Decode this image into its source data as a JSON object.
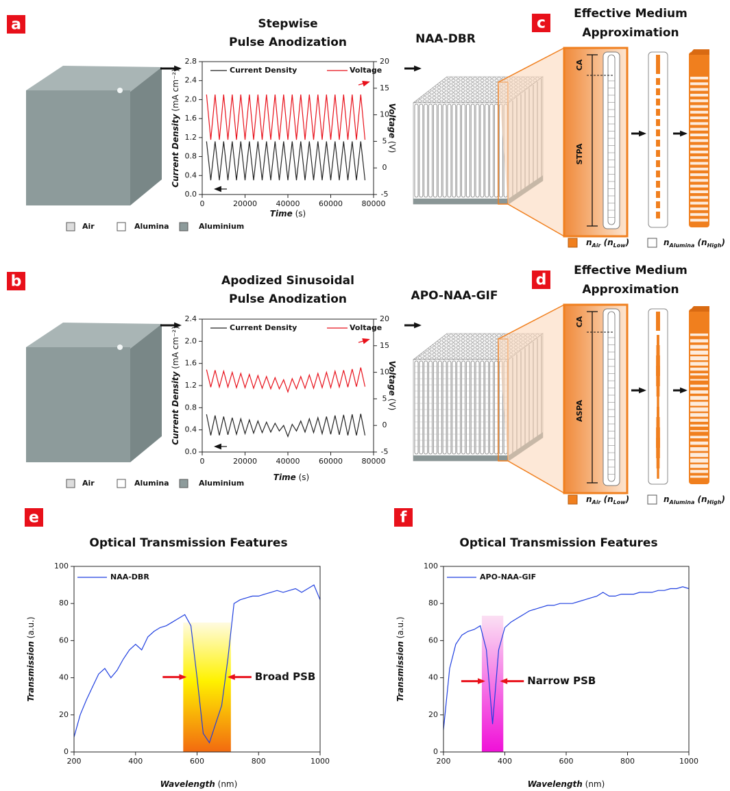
{
  "diagrams": [
    {
      "panel": "a",
      "product": "NAA-DBR",
      "ema_panel": "c",
      "ema_title": [
        "Effective Medium",
        "Approximation"
      ],
      "layers": [
        "CA",
        "STPA"
      ],
      "materials": [
        "Air",
        "Alumina",
        "Aluminium"
      ],
      "index_legend": [
        [
          "n",
          "Air",
          " (",
          "n",
          "Low",
          ")"
        ],
        [
          "n",
          "Alumina",
          " (",
          "n",
          "High",
          ")"
        ]
      ]
    },
    {
      "panel": "b",
      "product": "APO-NAA-GIF",
      "ema_panel": "d",
      "ema_title": [
        "Effective Medium",
        "Approximation"
      ],
      "layers": [
        "CA",
        "ASPA"
      ],
      "materials": [
        "Air",
        "Alumina",
        "Aluminium"
      ],
      "index_legend": [
        [
          "n",
          "Air",
          " (",
          "n",
          "Low",
          ")"
        ],
        [
          "n",
          "Alumina",
          " (",
          "n",
          "High",
          ")"
        ]
      ]
    }
  ],
  "chart_data": [
    {
      "type": "line",
      "title": [
        "Stepwise",
        "Pulse Anodization"
      ],
      "x_label": [
        "Time",
        " (s)"
      ],
      "y_label": [
        "Current Density",
        " (mA cm⁻²)"
      ],
      "y2_label": [
        "Voltage",
        " (V)"
      ],
      "x": [
        2000,
        4000,
        6000,
        8000,
        10000,
        12000,
        14000,
        16000,
        18000,
        20000,
        22000,
        24000,
        26000,
        28000,
        30000,
        32000,
        34000,
        36000,
        38000,
        40000,
        42000,
        44000,
        46000,
        48000,
        50000,
        52000,
        54000,
        56000,
        58000,
        60000,
        62000,
        64000,
        66000,
        68000,
        70000,
        72000,
        74000,
        76000
      ],
      "series": [
        {
          "name": "Current Density",
          "color": "#222222",
          "values": [
            1.12,
            0.3,
            1.12,
            0.3,
            1.12,
            0.3,
            1.12,
            0.3,
            1.12,
            0.3,
            1.12,
            0.3,
            1.12,
            0.3,
            1.12,
            0.3,
            1.12,
            0.3,
            1.12,
            0.3,
            1.12,
            0.3,
            1.12,
            0.3,
            1.12,
            0.3,
            1.12,
            0.3,
            1.12,
            0.3,
            1.12,
            0.3,
            1.12,
            0.3,
            1.12,
            0.3,
            1.12,
            0.3
          ]
        },
        {
          "name": "Voltage",
          "color": "#e8101a",
          "axis": "y2",
          "values": [
            13.8,
            5.3,
            13.8,
            5.3,
            13.8,
            5.3,
            13.8,
            5.3,
            13.8,
            5.3,
            13.8,
            5.3,
            13.8,
            5.3,
            13.8,
            5.3,
            13.8,
            5.3,
            13.8,
            5.3,
            13.8,
            5.3,
            13.8,
            5.3,
            13.8,
            5.3,
            13.8,
            5.3,
            13.8,
            5.3,
            13.8,
            5.3,
            13.8,
            5.3,
            13.8,
            5.3,
            13.8,
            5.3
          ]
        }
      ],
      "xlim": [
        0,
        80000
      ],
      "xticks": [
        0,
        20000,
        40000,
        60000,
        80000
      ],
      "ylim": [
        0,
        2.8
      ],
      "yticks": [
        {
          "value": 0,
          "label": "0.0"
        },
        0.4,
        0.8,
        1.2,
        1.6,
        {
          "value": 2,
          "label": "2.0"
        },
        2.4,
        2.8
      ],
      "y2lim": [
        -5,
        20
      ],
      "y2ticks": [
        -5,
        0,
        5,
        10,
        15,
        20
      ]
    },
    {
      "type": "line",
      "title": [
        "Apodized Sinusoidal",
        "Pulse Anodization"
      ],
      "x_label": [
        "Time",
        " (s)"
      ],
      "y_label": [
        "Current Density",
        " (mA cm⁻²)"
      ],
      "y2_label": [
        "Voltage",
        " (V)"
      ],
      "x": [
        2000,
        4000,
        6000,
        8000,
        10000,
        12000,
        14000,
        16000,
        18000,
        20000,
        22000,
        24000,
        26000,
        28000,
        30000,
        32000,
        34000,
        36000,
        38000,
        40000,
        42000,
        44000,
        46000,
        48000,
        50000,
        52000,
        54000,
        56000,
        58000,
        60000,
        62000,
        64000,
        66000,
        68000,
        70000,
        72000,
        74000,
        76000
      ],
      "series": [
        {
          "name": "Current Density",
          "color": "#222222",
          "values": [
            0.68,
            0.3,
            0.66,
            0.3,
            0.64,
            0.31,
            0.62,
            0.32,
            0.6,
            0.33,
            0.58,
            0.34,
            0.56,
            0.35,
            0.54,
            0.36,
            0.52,
            0.38,
            0.48,
            0.28,
            0.5,
            0.38,
            0.56,
            0.36,
            0.6,
            0.35,
            0.62,
            0.33,
            0.64,
            0.32,
            0.66,
            0.31,
            0.67,
            0.3,
            0.68,
            0.3,
            0.69,
            0.3
          ]
        },
        {
          "name": "Voltage",
          "color": "#e8101a",
          "axis": "y2",
          "values": [
            10.5,
            7.2,
            10.4,
            7.2,
            10.2,
            7.2,
            10.0,
            7.1,
            9.8,
            7.1,
            9.6,
            7.0,
            9.4,
            7.0,
            9.2,
            6.9,
            9.0,
            6.9,
            8.6,
            6.3,
            8.8,
            6.9,
            9.2,
            7.0,
            9.5,
            7.0,
            9.8,
            7.1,
            10.0,
            7.1,
            10.2,
            7.2,
            10.4,
            7.2,
            10.6,
            7.3,
            10.9,
            7.3
          ]
        }
      ],
      "xlim": [
        0,
        80000
      ],
      "xticks": [
        0,
        20000,
        40000,
        60000,
        80000
      ],
      "ylim": [
        0,
        2.4
      ],
      "yticks": [
        {
          "value": 0,
          "label": "0.0"
        },
        0.4,
        0.8,
        1.2,
        1.6,
        {
          "value": 2,
          "label": "2.0"
        },
        2.4
      ],
      "y2lim": [
        -5,
        20
      ],
      "y2ticks": [
        -5,
        0,
        5,
        10,
        15,
        20
      ]
    },
    {
      "type": "line",
      "panel": "e",
      "title": [
        "Optical Transmission Features"
      ],
      "x_label": [
        "Wavelength",
        " (nm)"
      ],
      "y_label": [
        "Transmission",
        " (a.u.)"
      ],
      "x": [
        200,
        220,
        240,
        260,
        280,
        300,
        320,
        340,
        360,
        380,
        400,
        420,
        440,
        460,
        480,
        500,
        520,
        540,
        560,
        580,
        600,
        620,
        640,
        660,
        680,
        700,
        720,
        740,
        760,
        780,
        800,
        820,
        840,
        860,
        880,
        900,
        920,
        940,
        960,
        980,
        1000
      ],
      "series": [
        {
          "name": "NAA-DBR",
          "color": "#1f3fe0",
          "values": [
            8,
            20,
            28,
            35,
            42,
            45,
            40,
            44,
            50,
            55,
            58,
            55,
            62,
            65,
            67,
            68,
            70,
            72,
            74,
            68,
            40,
            10,
            5,
            15,
            25,
            50,
            80,
            82,
            83,
            84,
            84,
            85,
            86,
            87,
            86,
            87,
            88,
            86,
            88,
            90,
            82
          ]
        }
      ],
      "band": [
        555,
        710
      ],
      "annotation": "Broad PSB",
      "xlim": [
        200,
        1000
      ],
      "xticks": [
        200,
        400,
        600,
        800,
        1000
      ],
      "ylim": [
        0,
        100
      ],
      "yticks": [
        0,
        20,
        40,
        60,
        80,
        100
      ]
    },
    {
      "type": "line",
      "panel": "f",
      "title": [
        "Optical Transmission Features"
      ],
      "x_label": [
        "Wavelength",
        " (nm)"
      ],
      "y_label": [
        "Transmission",
        " (a.u.)"
      ],
      "x": [
        200,
        220,
        240,
        260,
        280,
        300,
        320,
        340,
        360,
        380,
        400,
        420,
        440,
        460,
        480,
        500,
        520,
        540,
        560,
        580,
        600,
        620,
        640,
        660,
        680,
        700,
        720,
        740,
        760,
        780,
        800,
        820,
        840,
        860,
        880,
        900,
        920,
        940,
        960,
        980,
        1000
      ],
      "series": [
        {
          "name": "APO-NAA-GIF",
          "color": "#1f3fe0",
          "values": [
            12,
            45,
            58,
            63,
            65,
            66,
            68,
            55,
            15,
            55,
            67,
            70,
            72,
            74,
            76,
            77,
            78,
            79,
            79,
            80,
            80,
            80,
            81,
            82,
            83,
            84,
            86,
            84,
            84,
            85,
            85,
            85,
            86,
            86,
            86,
            87,
            87,
            88,
            88,
            89,
            88
          ]
        }
      ],
      "band": [
        325,
        395
      ],
      "annotation": "Narrow PSB",
      "xlim": [
        200,
        1000
      ],
      "xticks": [
        200,
        400,
        600,
        800,
        1000
      ],
      "ylim": [
        0,
        100
      ],
      "yticks": [
        0,
        20,
        40,
        60,
        80,
        100
      ]
    }
  ]
}
